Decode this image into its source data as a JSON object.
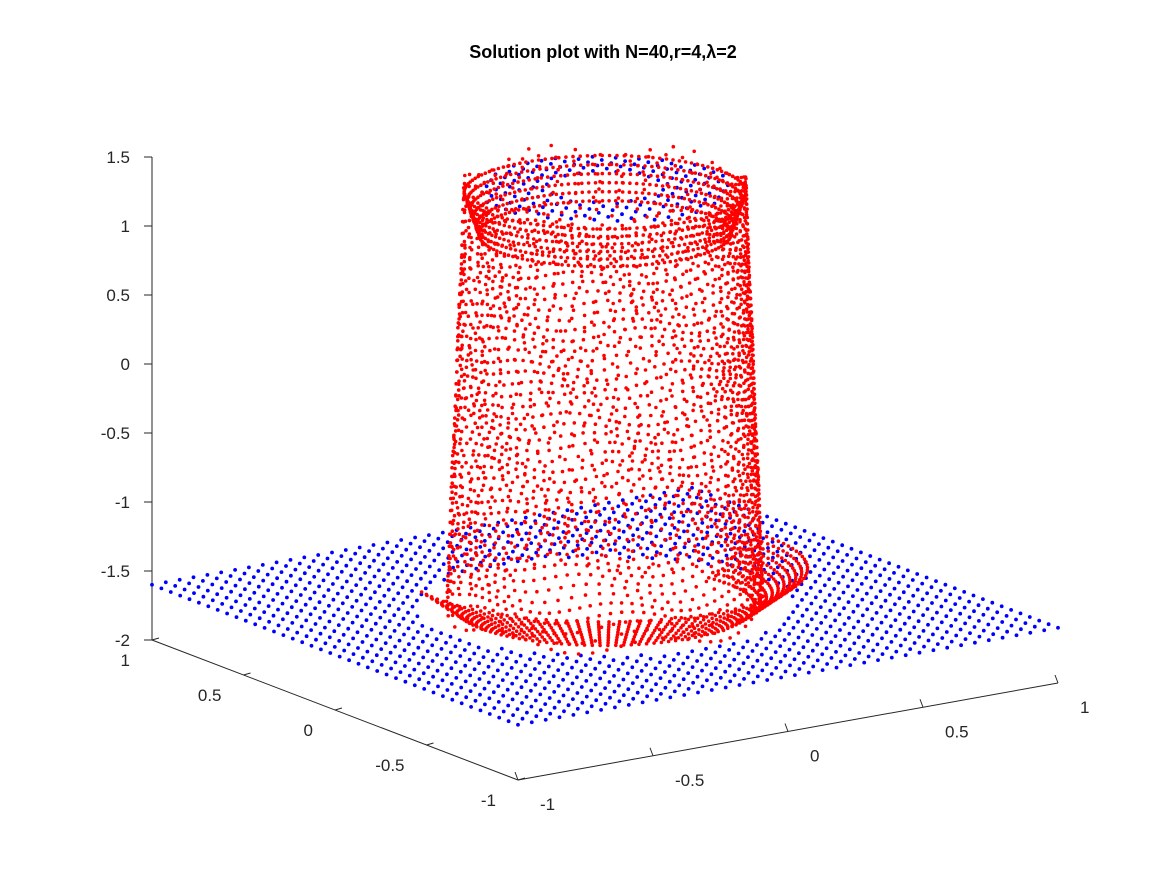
{
  "chart_data": {
    "type": "scatter",
    "title": "Solution plot with N=40,r=4,λ=2",
    "xlabel": "",
    "ylabel": "",
    "zlabel": "",
    "xlim": [
      -1,
      1
    ],
    "ylim": [
      -1,
      1
    ],
    "zlim": [
      -2,
      1.5
    ],
    "x_ticks": [
      "-1",
      "-0.5",
      "0",
      "0.5",
      "1"
    ],
    "y_ticks": [
      "-1",
      "-0.5",
      "0",
      "0.5",
      "1"
    ],
    "z_ticks": [
      "-2",
      "-1.5",
      "-1",
      "-0.5",
      "0",
      "0.5",
      "1",
      "1.5"
    ],
    "grid": false,
    "series": [
      {
        "color": "#0000ff",
        "description": "uniform grid of points at z ≈ -1.6 covering [-1,1]×[-1,1] (outside the disc); top cap at z ≈ 1.45 inside the disc",
        "grid_n": 40,
        "base_level": -1.6,
        "cap_level": 1.45
      },
      {
        "color": "#ff0000",
        "description": "scattered points on a cylinder-shaped solution surface of radius ≈ 0.45 rising from ≈ -1.6 to ≈ 1.45",
        "radius": 0.45,
        "z_range": [
          -1.6,
          1.45
        ]
      }
    ]
  }
}
